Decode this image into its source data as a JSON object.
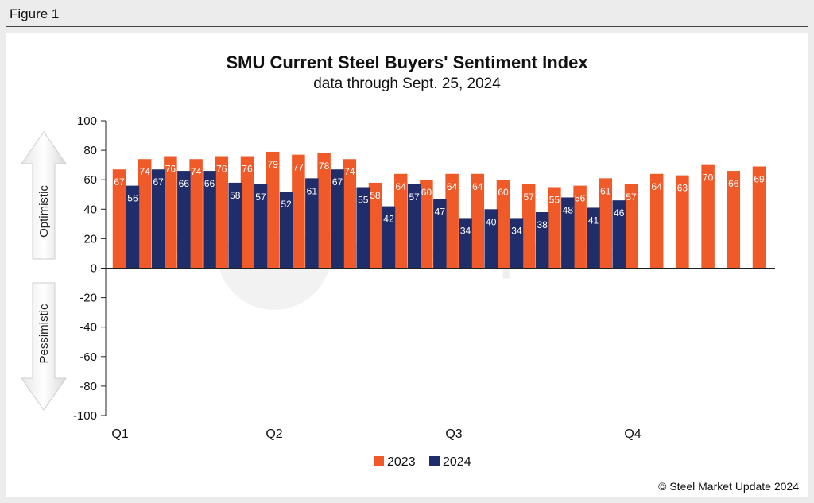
{
  "figure_label": "Figure 1",
  "copyright": "© Steel Market Update 2024",
  "watermark": "Steel Market Update",
  "side_labels": {
    "top": "Optimistic",
    "bottom": "Pessimistic"
  },
  "colors": {
    "2023": "#f05a28",
    "2024": "#1f2d6b"
  },
  "chart_data": {
    "type": "bar",
    "title": "SMU Current Steel Buyers' Sentiment Index",
    "subtitle": "data through Sept. 25, 2024",
    "ylim": [
      -100,
      100
    ],
    "yticks": [
      100,
      80,
      60,
      40,
      20,
      0,
      -20,
      -40,
      -60,
      -80,
      -100
    ],
    "x_labels": [
      "Q1",
      "Q2",
      "Q3",
      "Q4"
    ],
    "legend": "bottom-center",
    "grid": false,
    "series": [
      {
        "name": "2023",
        "values": [
          67,
          74,
          76,
          74,
          76,
          76,
          79,
          77,
          78,
          74,
          58,
          64,
          60,
          64,
          64,
          60,
          57,
          55,
          56,
          61,
          57,
          64,
          63,
          70,
          66,
          69
        ]
      },
      {
        "name": "2024",
        "values": [
          56,
          67,
          66,
          66,
          58,
          57,
          52,
          61,
          67,
          55,
          42,
          57,
          47,
          34,
          40,
          34,
          38,
          48,
          41,
          46
        ]
      }
    ]
  }
}
